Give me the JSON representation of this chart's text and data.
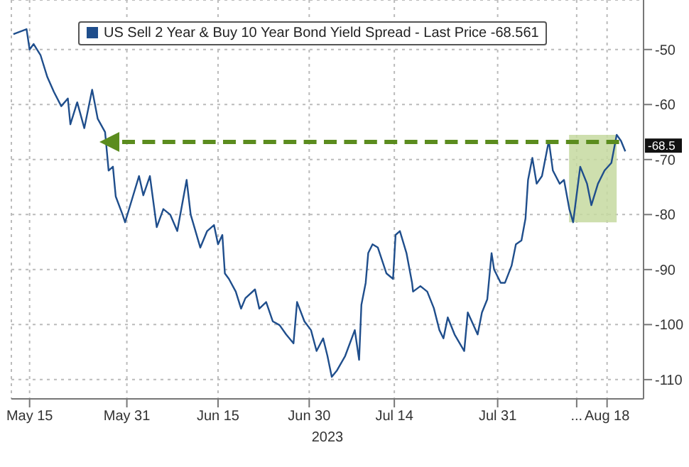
{
  "chart_data": {
    "type": "line",
    "legend": "top",
    "grid": true,
    "marker": "none",
    "xlabel": "2023",
    "xlim": [
      "2023-05-12",
      "2023-08-24"
    ],
    "xticks": [
      {
        "value": "2023-05-15",
        "label": "May 15"
      },
      {
        "value": "2023-05-31",
        "label": "May 31"
      },
      {
        "value": "2023-06-15",
        "label": "Jun 15"
      },
      {
        "value": "2023-06-30",
        "label": "Jun 30"
      },
      {
        "value": "2023-07-14",
        "label": "Jul 14"
      },
      {
        "value": "2023-07-31",
        "label": "Jul 31"
      },
      {
        "value": "2023-08-13",
        "label": "..."
      },
      {
        "value": "2023-08-18",
        "label": "Aug 18"
      }
    ],
    "ylim": [
      -113.5,
      -41
    ],
    "yticks": [
      -50,
      -60,
      -70,
      -80,
      -90,
      -100,
      -110
    ],
    "series": [
      {
        "name": "US Sell 2 Year & Buy 10 Year Bond Yield Spread - Last Price -68.561",
        "color": "#1f4e8c",
        "x": [
          "2023-05-12T08:00",
          "2023-05-14T12:00",
          "2023-05-15",
          "2023-05-15T16:00",
          "2023-05-16T19:00",
          "2023-05-17T22:00",
          "2023-05-19",
          "2023-05-20T05:00",
          "2023-05-21T07:00",
          "2023-05-21T17:00",
          "2023-05-22T20:00",
          "2023-05-24",
          "2023-05-25T07:00",
          "2023-05-26T05:00",
          "2023-05-27T10:00",
          "2023-05-28",
          "2023-05-28T17:00",
          "2023-05-29T04:00",
          "2023-05-30T07:00",
          "2023-05-30T17:00",
          "2023-05-31T10:00",
          "2023-06-02",
          "2023-06-02T17:00",
          "2023-06-03T19:00",
          "2023-06-04T22:00",
          "2023-06-06",
          "2023-06-07T03:00",
          "2023-06-08T07:00",
          "2023-06-09T20:00",
          "2023-06-10T12:00",
          "2023-06-12T02:00",
          "2023-06-13T05:00",
          "2023-06-14T08:00",
          "2023-06-15",
          "2023-06-15T17:00",
          "2023-06-16T03:00",
          "2023-06-16T19:00",
          "2023-06-17T22:00",
          "2023-06-18T19:00",
          "2023-06-19T12:00",
          "2023-06-21T02:00",
          "2023-06-21T19:00",
          "2023-06-22T22:00",
          "2023-06-24",
          "2023-06-25T03:00",
          "2023-06-26T05:00",
          "2023-06-27T10:00",
          "2023-06-28",
          "2023-06-29T05:00",
          "2023-06-30T07:00",
          "2023-07-01T05:00",
          "2023-07-02T07:00",
          "2023-07-03",
          "2023-07-03T17:00",
          "2023-07-04T14:00",
          "2023-07-05T22:00",
          "2023-07-07T12:00",
          "2023-07-08T05:00",
          "2023-07-08T14:00",
          "2023-07-09T07:00",
          "2023-07-09T17:00",
          "2023-07-10T10:00",
          "2023-07-11T07:00",
          "2023-07-12T17:00",
          "2023-07-13T19:00",
          "2023-07-14T05:00",
          "2023-07-14T22:00",
          "2023-07-16",
          "2023-07-16T22:00",
          "2023-07-17T02:00",
          "2023-07-18T07:00",
          "2023-07-19T10:00",
          "2023-07-20T12:00",
          "2023-07-21T10:00",
          "2023-07-22T02:00",
          "2023-07-22T19:00",
          "2023-07-23T22:00",
          "2023-07-25T12:00",
          "2023-07-26T02:00",
          "2023-07-27T17:00",
          "2023-07-28T10:00",
          "2023-07-29T07:00",
          "2023-07-30",
          "2023-07-30T10:00",
          "2023-07-31T12:00",
          "2023-08-01T05:00",
          "2023-08-02T07:00",
          "2023-08-03",
          "2023-08-03T22:00",
          "2023-08-04T14:00",
          "2023-08-05",
          "2023-08-05T17:00",
          "2023-08-06T10:00",
          "2023-08-07T07:00",
          "2023-08-08T10:00",
          "2023-08-09T02:00",
          "2023-08-10T05:00",
          "2023-08-10T22:00",
          "2023-08-11T19:00",
          "2023-08-12T10:00",
          "2023-08-13T14:00",
          "2023-08-14T17:00",
          "2023-08-15T10:00",
          "2023-08-16T12:00",
          "2023-08-17T14:00",
          "2023-08-18T17:00",
          "2023-08-19T14:00",
          "2023-08-20T07:00",
          "2023-08-21"
        ],
        "values": [
          -47.2,
          -46.3,
          -50,
          -49,
          -51,
          -55,
          -57.7,
          -60.3,
          -58.9,
          -63.6,
          -59.6,
          -64.3,
          -57.3,
          -62.6,
          -65,
          -72,
          -71.3,
          -76.7,
          -80,
          -81.4,
          -78.8,
          -73,
          -76.5,
          -73,
          -82.3,
          -79,
          -80,
          -83,
          -73.7,
          -80,
          -86,
          -83,
          -81.9,
          -85.4,
          -83.7,
          -90.7,
          -91.7,
          -94,
          -97.1,
          -95.2,
          -93.6,
          -97.1,
          -95.9,
          -99.4,
          -100.1,
          -101.8,
          -103.4,
          -95.9,
          -99.4,
          -101,
          -104.8,
          -102.5,
          -105.7,
          -109.5,
          -108.3,
          -105.7,
          -101,
          -106.4,
          -96.4,
          -92.4,
          -87,
          -85.4,
          -86,
          -90.7,
          -91.7,
          -83.7,
          -83,
          -87,
          -92.4,
          -94,
          -93,
          -94,
          -97,
          -101,
          -102.5,
          -98.7,
          -101.8,
          -104.8,
          -97.8,
          -101.8,
          -97.8,
          -95.4,
          -87,
          -90,
          -92.4,
          -92.4,
          -89.3,
          -85.4,
          -84.7,
          -80.7,
          -73.7,
          -69.7,
          -74.4,
          -73,
          -66.6,
          -72,
          -74.4,
          -73.7,
          -79,
          -81.4,
          -71.3,
          -74.4,
          -78.3,
          -74.4,
          -72,
          -70.6,
          -65.5,
          -66.6,
          -68.5
        ]
      }
    ],
    "bands": [
      {
        "axis": "x",
        "from": "2023-08-11T18:00",
        "to": "2023-08-19T14:00",
        "color": "#c5d9a0"
      }
    ],
    "annotations": [
      "-68.5"
    ]
  }
}
